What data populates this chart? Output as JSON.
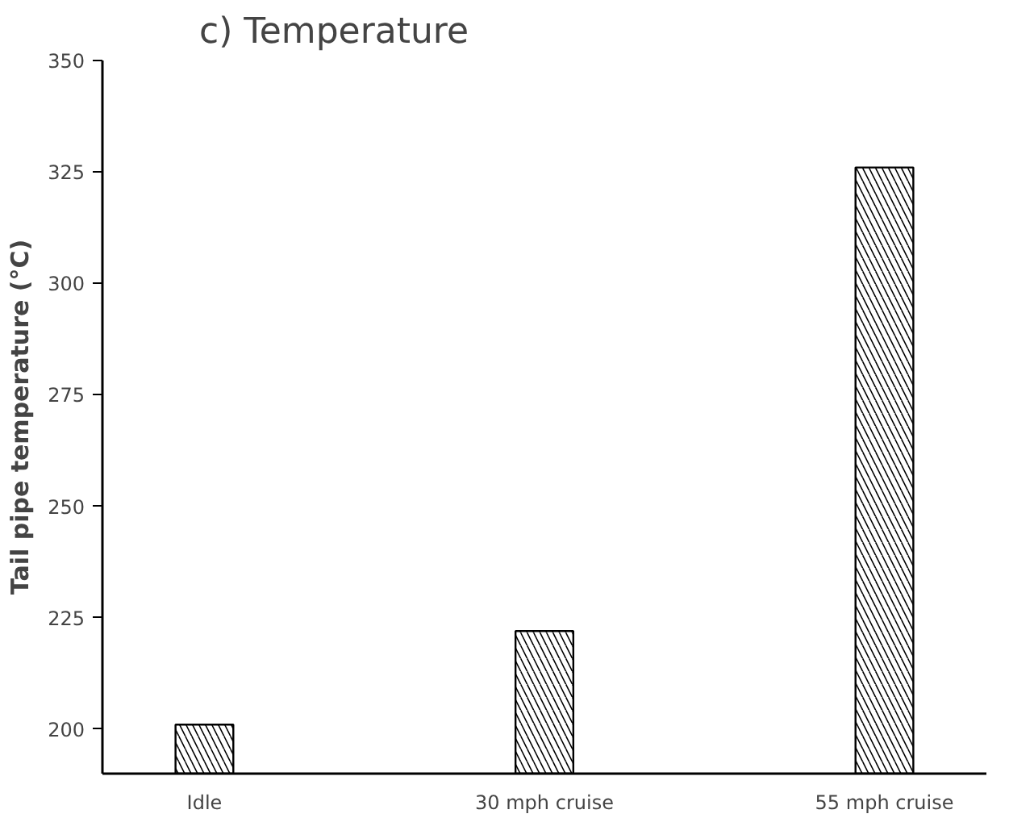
{
  "chart_data": {
    "type": "bar",
    "title": "c) Temperature",
    "ylabel": "Tail pipe temperature (°C)",
    "categories": [
      "Idle",
      "30 mph cruise",
      "55 mph cruise"
    ],
    "values": [
      201,
      222,
      326
    ],
    "color": "#ffffff",
    "ylim": [
      190,
      350
    ],
    "yticks": [
      200,
      225,
      250,
      275,
      300,
      325,
      350
    ],
    "grid": false
  }
}
